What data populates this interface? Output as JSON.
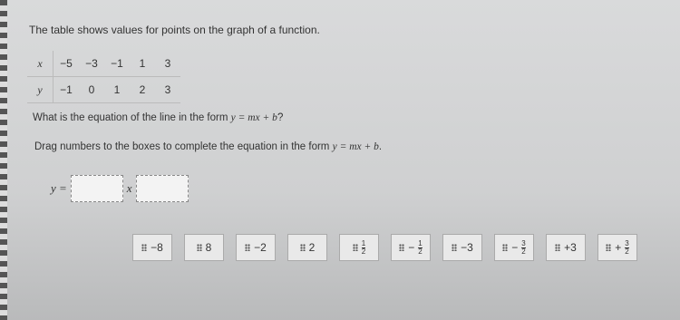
{
  "instruction": "The table shows values for points on the graph of a function.",
  "table": {
    "rows": [
      [
        "x",
        "−5",
        "−3",
        "−1",
        "1",
        "3"
      ],
      [
        "y",
        "−1",
        "0",
        "1",
        "2",
        "3"
      ]
    ]
  },
  "question": {
    "prefix": "What is the equation of the line in the form",
    "formula": "y = mx + b",
    "suffix": "?"
  },
  "drag_instruction": {
    "prefix": "Drag numbers to the boxes to complete the equation in the form",
    "formula": "y = mx + b",
    "suffix": "."
  },
  "equation": {
    "lhs": "y =",
    "var": "x"
  },
  "tiles": [
    {
      "text": "−8"
    },
    {
      "text": "8"
    },
    {
      "text": "−2"
    },
    {
      "text": "2"
    },
    {
      "sign": "",
      "num": "1",
      "den": "2"
    },
    {
      "sign": "−",
      "num": "1",
      "den": "2"
    },
    {
      "text": "−3"
    },
    {
      "sign": "−",
      "num": "3",
      "den": "2"
    },
    {
      "text": "+3"
    },
    {
      "sign": "+",
      "num": "3",
      "den": "2"
    }
  ]
}
